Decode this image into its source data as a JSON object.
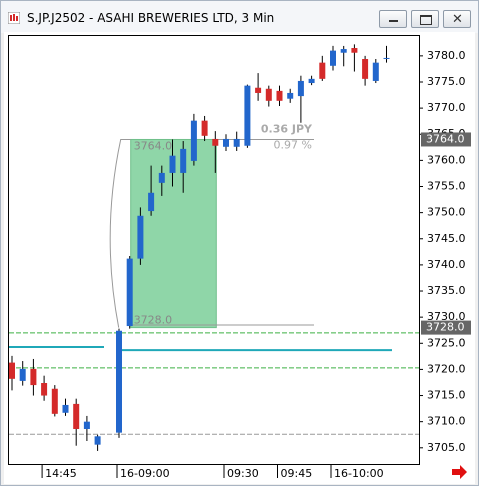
{
  "window": {
    "title": "S.JP.J2502 - ASAHI BREWERIES LTD, 3 Min"
  },
  "chart_data": {
    "type": "candlestick",
    "categories": [
      null,
      null,
      null,
      "14:45",
      null,
      null,
      null,
      null,
      null,
      null,
      "16-09:00",
      null,
      null,
      null,
      null,
      null,
      null,
      null,
      null,
      null,
      "09:30",
      null,
      null,
      null,
      null,
      "09:45",
      null,
      null,
      null,
      null,
      "16-10:00",
      null,
      null,
      null,
      null,
      null
    ],
    "open": [
      3721.3,
      3717.8,
      3720.1,
      3717.4,
      3716.3,
      3711.7,
      3713.4,
      3708.6,
      3705.6,
      null,
      3707.9,
      3728.3,
      3741.2,
      3750.3,
      3755.7,
      3757.6,
      3757.6,
      3759.9,
      3767.6,
      3764.1,
      3762.6,
      3762.6,
      3762.8,
      3773.9,
      3773.7,
      3773.3,
      3771.8,
      3772.3,
      3774.8,
      3778.7,
      3778.1,
      3780.6,
      3781.5,
      3779.4,
      3775.2,
      3779.6
    ],
    "high": [
      3722.6,
      3721.6,
      3722.0,
      3718.8,
      3717.0,
      3714.4,
      3714.4,
      3711.1,
      3707.5,
      null,
      3727.8,
      3741.7,
      3751.0,
      3759.0,
      3759.0,
      3764.0,
      3763.7,
      3768.9,
      3768.5,
      3765.6,
      3765.0,
      3765.5,
      3774.5,
      3776.7,
      3774.3,
      3774.3,
      3773.7,
      3776.2,
      3776.2,
      3780.0,
      3781.9,
      3781.9,
      3782.2,
      3780.0,
      3779.4,
      3781.9
    ],
    "low": [
      3716.0,
      3716.9,
      3715.0,
      3714.0,
      3711.0,
      3711.1,
      3705.4,
      3706.3,
      3704.4,
      null,
      3706.9,
      3727.8,
      3740.0,
      3749.4,
      3753.2,
      3755.0,
      3753.8,
      3759.0,
      3763.7,
      3757.6,
      3761.8,
      3761.8,
      3762.4,
      3771.4,
      3770.3,
      3770.4,
      3771.0,
      3767.2,
      3774.4,
      3775.2,
      3777.2,
      3778.0,
      3777.0,
      3774.3,
      3774.8,
      3778.7
    ],
    "close": [
      3718.2,
      3720.1,
      3717.0,
      3715.0,
      3711.5,
      3713.2,
      3708.6,
      3710.0,
      3707.2,
      null,
      3727.4,
      3741.2,
      3749.4,
      3753.8,
      3757.6,
      3760.9,
      3762.2,
      3767.6,
      3764.7,
      3762.8,
      3764.1,
      3764.1,
      3774.3,
      3772.9,
      3771.4,
      3771.4,
      3772.9,
      3775.2,
      3775.6,
      3775.6,
      3781.0,
      3781.3,
      3780.6,
      3775.6,
      3778.7,
      3779.6
    ],
    "up_color": "#2266cc",
    "down_color": "#d42a2a",
    "ylim": [
      3701.9,
      3783.8
    ],
    "yticks": [
      {
        "value": 3705,
        "label": "3705.0"
      },
      {
        "value": 3710,
        "label": "3710.0"
      },
      {
        "value": 3715,
        "label": "3715.0"
      },
      {
        "value": 3720,
        "label": "3720.0"
      },
      {
        "value": 3725,
        "label": "3725.0"
      },
      {
        "value": 3730,
        "label": "3730.0"
      },
      {
        "value": 3735,
        "label": "3735.0"
      },
      {
        "value": 3740,
        "label": "3740.0"
      },
      {
        "value": 3745,
        "label": "3745.0"
      },
      {
        "value": 3750,
        "label": "3750.0"
      },
      {
        "value": 3755,
        "label": "3755.0"
      },
      {
        "value": 3760,
        "label": "3760.0"
      },
      {
        "value": 3765,
        "label": "3765.0"
      },
      {
        "value": 3770,
        "label": "3770.0"
      },
      {
        "value": 3775,
        "label": "3775.0"
      },
      {
        "value": 3780,
        "label": "3780.0"
      }
    ],
    "levels": [
      {
        "value": 3727.0,
        "color": "#3cb043",
        "dashed": true
      },
      {
        "value": 3720.3,
        "color": "#3cb043",
        "dashed": true
      },
      {
        "value": 3707.6,
        "color": "#999999",
        "dashed": true
      },
      {
        "value": 3728.5,
        "color": "#999999",
        "dashed": false
      },
      {
        "value": 3724.3,
        "color": "#1fa8b8",
        "dashed": false
      },
      {
        "value": 3723.7,
        "color": "#1fa8b8",
        "dashed": false
      }
    ],
    "measure": {
      "high": {
        "value": 3764,
        "label": "3764.0"
      },
      "low": {
        "value": 3728,
        "label": "3728.0"
      },
      "change_label": "0.36 JPY",
      "percent_label": "0.97 %",
      "color": "#8fd6a8"
    }
  }
}
